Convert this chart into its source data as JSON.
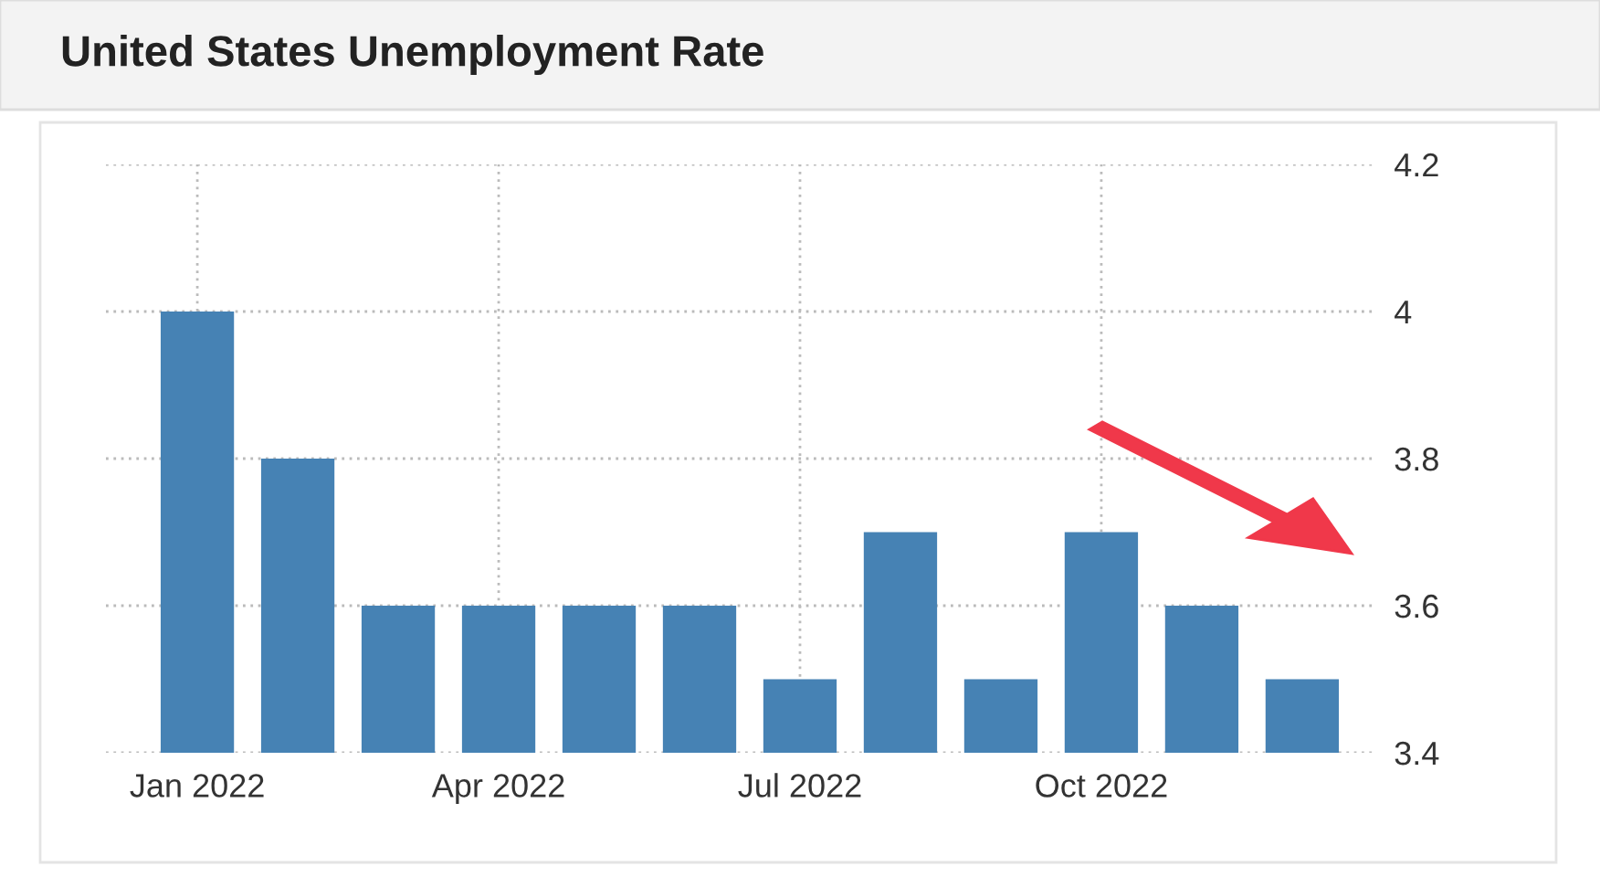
{
  "chart_data": {
    "type": "bar",
    "title": "United States Unemployment Rate",
    "categories": [
      "Jan 2022",
      null,
      null,
      "Apr 2022",
      null,
      null,
      "Jul 2022",
      null,
      null,
      "Oct 2022",
      null,
      null
    ],
    "values": [
      4.0,
      3.8,
      3.6,
      3.6,
      3.6,
      3.6,
      3.5,
      3.7,
      3.5,
      3.7,
      3.6,
      3.5
    ],
    "color": "#4682b4",
    "ylim": [
      3.4,
      4.2
    ],
    "yticks": [
      3.4,
      3.6,
      3.8,
      4,
      4.2
    ],
    "grid": true
  }
}
